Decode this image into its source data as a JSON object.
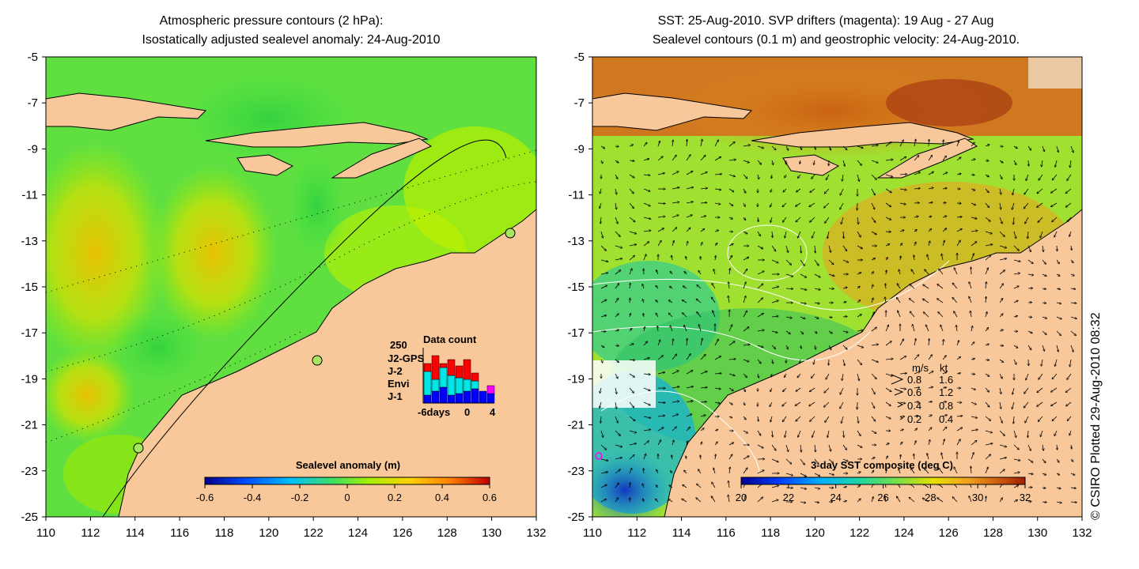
{
  "left_panel": {
    "title_line1": "Atmospheric pressure contours (2 hPa):",
    "title_line2": "Isostatically adjusted sealevel anomaly: 24-Aug-2010",
    "x_ticks": [
      "110",
      "112",
      "114",
      "116",
      "118",
      "120",
      "122",
      "124",
      "126",
      "128",
      "130",
      "132"
    ],
    "y_ticks": [
      "-5",
      "-7",
      "-9",
      "-11",
      "-13",
      "-15",
      "-17",
      "-19",
      "-21",
      "-23",
      "-25"
    ],
    "colorbar": {
      "label": "Sealevel anomaly (m)",
      "ticks": [
        "-0.6",
        "-0.4",
        "-0.2",
        "0",
        "0.2",
        "0.4",
        "0.6"
      ]
    },
    "data_count_inset": {
      "title": "Data count",
      "ymax_label": "250",
      "legend": [
        {
          "name": "J2-GPS",
          "color": "#ff00ff"
        },
        {
          "name": "J-2",
          "color": "#ff0000"
        },
        {
          "name": "Envi",
          "color": "#00e5e5"
        },
        {
          "name": "J-1",
          "color": "#0000ff"
        }
      ],
      "x_labels": [
        "-6days",
        "0",
        "4"
      ]
    }
  },
  "right_panel": {
    "title_line1": "SST: 25-Aug-2010. SVP drifters (magenta): 19 Aug - 27 Aug",
    "title_line2": "Sealevel contours (0.1 m) and geostrophic velocity: 24-Aug-2010.",
    "x_ticks": [
      "110",
      "112",
      "114",
      "116",
      "118",
      "120",
      "122",
      "124",
      "126",
      "128",
      "130",
      "132"
    ],
    "y_ticks": [
      "-5",
      "-7",
      "-9",
      "-11",
      "-13",
      "-15",
      "-17",
      "-19",
      "-21",
      "-23",
      "-25"
    ],
    "colorbar": {
      "label": "3-day SST composite (deg C)",
      "ticks": [
        "20",
        "22",
        "24",
        "26",
        "28",
        "30",
        "32"
      ]
    },
    "speed_legend": {
      "header_ms": "m/s",
      "header_kt": "kt",
      "rows": [
        {
          "ms": "0.8",
          "kt": "1.6"
        },
        {
          "ms": "0.6",
          "kt": "1.2"
        },
        {
          "ms": "0.4",
          "kt": "0.8"
        },
        {
          "ms": "0.2",
          "kt": "0.4"
        }
      ]
    }
  },
  "credit": "© CSIRO Plotted 29-Aug-2010 08:32",
  "colors": {
    "land": "#f9c89a",
    "sla_colormap": [
      "#00008f",
      "#0050ff",
      "#00c0ff",
      "#40e060",
      "#a8f000",
      "#ffd000",
      "#ff8000",
      "#c00000"
    ],
    "sst_colormap": [
      "#00008f",
      "#0040ff",
      "#00b0ff",
      "#20d8a0",
      "#80e040",
      "#e8e000",
      "#f0a020",
      "#d06010",
      "#a02000"
    ]
  }
}
